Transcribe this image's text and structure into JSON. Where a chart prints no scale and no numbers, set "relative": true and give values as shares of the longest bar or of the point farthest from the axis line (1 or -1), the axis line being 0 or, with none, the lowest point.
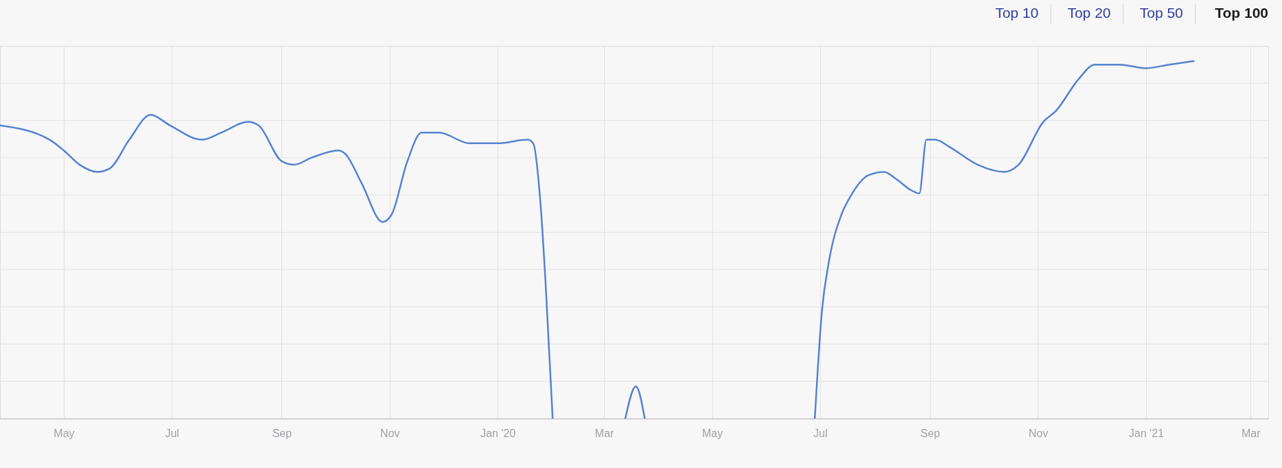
{
  "chart_data": {
    "type": "line",
    "relative": true,
    "grid": true,
    "x": [
      "2019-03-26",
      "2019-04-23",
      "2019-05-01",
      "2019-05-10",
      "2019-05-20",
      "2019-05-27",
      "2019-06-07",
      "2019-06-19",
      "2019-06-30",
      "2019-07-18",
      "2019-07-29",
      "2019-08-13",
      "2019-08-19",
      "2019-09-01",
      "2019-09-08",
      "2019-09-18",
      "2019-10-03",
      "2019-10-07",
      "2019-10-16",
      "2019-10-28",
      "2019-11-02",
      "2019-11-11",
      "2019-11-19",
      "2019-11-29",
      "2019-12-16",
      "2020-01-01",
      "2020-01-18",
      "2020-01-21",
      "2020-01-25",
      "2020-01-28",
      "2020-02-01",
      "2020-02-20",
      "2020-03-13",
      "2020-03-19",
      "2020-03-24",
      "2020-05-15",
      "2020-06-28",
      "2020-07-02",
      "2020-07-06",
      "2020-07-13",
      "2020-07-18",
      "2020-07-28",
      "2020-08-06",
      "2020-08-13",
      "2020-08-21",
      "2020-08-26",
      "2020-08-30",
      "2020-09-04",
      "2020-09-12",
      "2020-09-28",
      "2020-10-13",
      "2020-10-21",
      "2020-11-04",
      "2020-11-11",
      "2020-11-24",
      "2020-12-03",
      "2020-12-17",
      "2021-01-01",
      "2021-01-14",
      "2021-01-28"
    ],
    "series": [
      {
        "color": "#5482cf",
        "values": [
          0.82,
          0.78,
          0.75,
          0.71,
          0.69,
          0.7,
          0.78,
          0.85,
          0.82,
          0.78,
          0.8,
          0.83,
          0.82,
          0.72,
          0.71,
          0.73,
          0.75,
          0.74,
          0.66,
          0.55,
          0.57,
          0.72,
          0.8,
          0.8,
          0.77,
          0.77,
          0.78,
          0.77,
          0.61,
          0.38,
          0,
          null,
          0,
          0.09,
          0,
          null,
          0,
          0.3,
          0.44,
          0.57,
          0.62,
          0.68,
          0.69,
          0.67,
          0.64,
          0.63,
          0.78,
          0.78,
          0.76,
          0.71,
          0.69,
          0.71,
          0.83,
          0.86,
          0.95,
          0.99,
          0.99,
          0.98,
          0.99,
          1
        ]
      }
    ],
    "xlim": [
      "2019-03-26",
      "2021-03-11"
    ],
    "xticks": [
      {
        "value": "2019-05",
        "label": "May"
      },
      {
        "value": "2019-07",
        "label": "Jul"
      },
      {
        "value": "2019-09",
        "label": "Sep"
      },
      {
        "value": "2019-11",
        "label": "Nov"
      },
      {
        "value": "2020-01",
        "label": "Jan '20"
      },
      {
        "value": "2020-03",
        "label": "Mar"
      },
      {
        "value": "2020-05",
        "label": "May"
      },
      {
        "value": "2020-07",
        "label": "Jul"
      },
      {
        "value": "2020-09",
        "label": "Sep"
      },
      {
        "value": "2020-11",
        "label": "Nov"
      },
      {
        "value": "2021-01",
        "label": "Jan '21"
      },
      {
        "value": "2021-03",
        "label": "Mar"
      }
    ],
    "annotations": [
      "Top 10",
      "Top 20",
      "Top 50",
      "Top 100"
    ]
  }
}
